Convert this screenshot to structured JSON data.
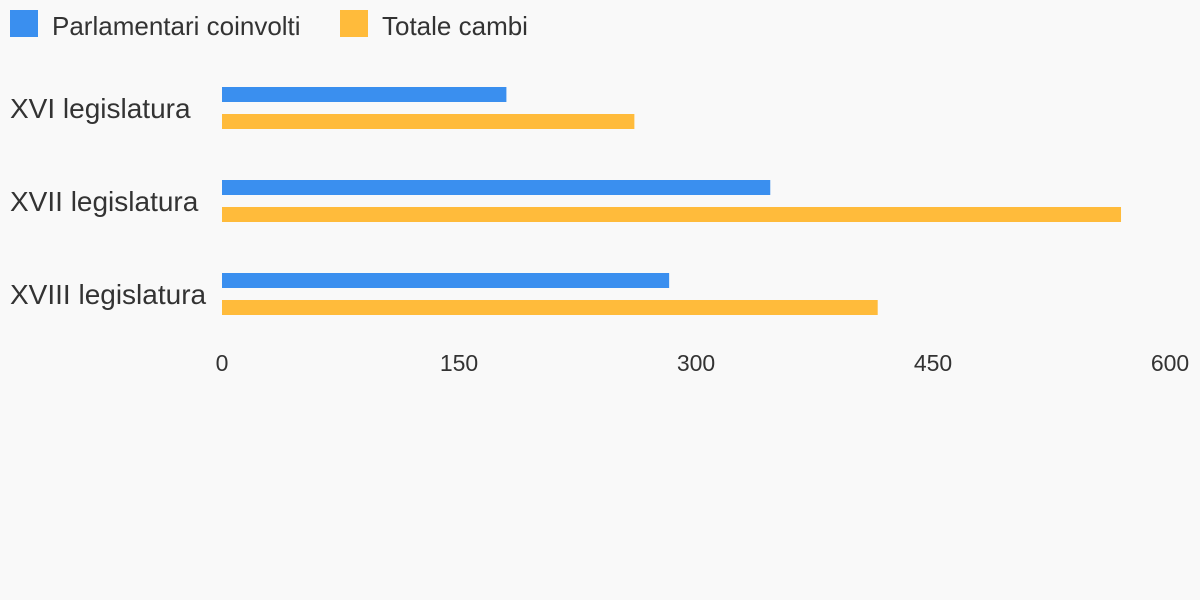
{
  "chart_data": {
    "type": "bar",
    "orientation": "horizontal",
    "categories": [
      "XVI legislatura",
      "XVII legislatura",
      "XVIII legislatura"
    ],
    "series": [
      {
        "name": "Parlamentari coinvolti",
        "color": "#3a8fef",
        "values": [
          180,
          347,
          283
        ]
      },
      {
        "name": "Totale cambi",
        "color": "#ffbb3b",
        "values": [
          261,
          569,
          415
        ]
      }
    ],
    "xlim": [
      0,
      600
    ],
    "ticks": [
      "0",
      "150",
      "300",
      "450",
      "600"
    ],
    "grid": false,
    "legend_position": "top-left"
  }
}
